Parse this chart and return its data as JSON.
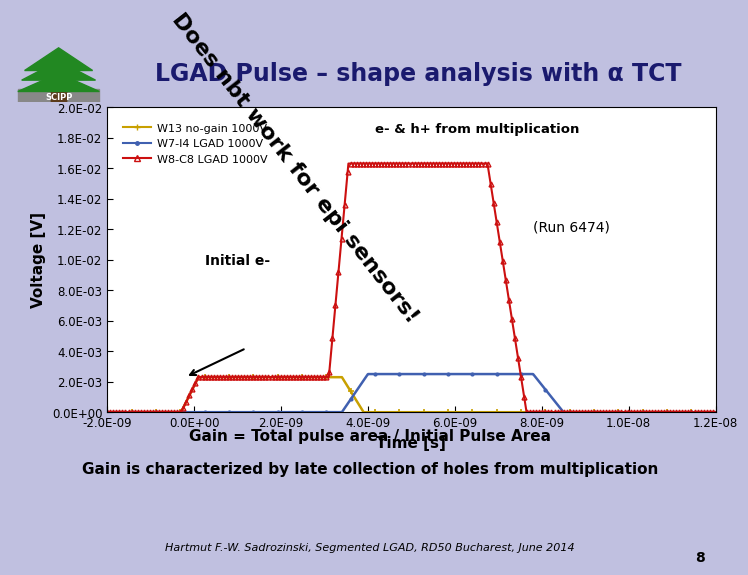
{
  "title": "LGAD Pulse – shape analysis with α TCT",
  "bg_color": "#c0c0e0",
  "plot_bg_color": "#ffffff",
  "header_bg": "#d8d8f0",
  "xlabel": "Time [s]",
  "ylabel": "Voltage [V]",
  "xlim": [
    -2e-09,
    1.2e-08
  ],
  "ylim": [
    0.0,
    0.02
  ],
  "yticks": [
    0.0,
    0.002,
    0.004,
    0.006,
    0.008,
    0.01,
    0.012,
    0.014,
    0.016,
    0.018,
    0.02
  ],
  "ytick_labels": [
    "0.0E+00",
    "2.0E-03",
    "4.0E-03",
    "6.0E-03",
    "8.0E-03",
    "1.0E-02",
    "1.2E-02",
    "1.4E-02",
    "1.6E-02",
    "1.8E-02",
    "2.0E-02"
  ],
  "xtick_labels": [
    "-2.0E-09",
    "0.0E+00",
    "2.0E-09",
    "4.0E-09",
    "6.0E-09",
    "8.0E-09",
    "1.0E-08",
    "1.2E-08"
  ],
  "xticks": [
    -2e-09,
    0.0,
    2e-09,
    4e-09,
    6e-09,
    8e-09,
    1e-08,
    1.2e-08
  ],
  "legend_labels": [
    "W13 no-gain 1000V",
    "W7-I4 LGAD 1000V",
    "W8-C8 LGAD 1000V"
  ],
  "color_yellow": "#c8a000",
  "color_blue": "#4060b0",
  "color_red": "#cc1010",
  "annotation_text1": "e- & h+ from multiplication",
  "annotation_text2": "Does nbt work for epi sensors!",
  "annotation_run": "(Run 6474)",
  "annotation_initial": "Initial e-",
  "gain_text1": "Gain = Total pulse area / Initial Pulse Area",
  "gain_text2": "Gain is characterized by late collection of holes from multiplication",
  "footer": "Hartmut F.-W. Sadrozinski, Segmented LGAD, RD50 Bucharest, June 2014",
  "page_num": "8"
}
